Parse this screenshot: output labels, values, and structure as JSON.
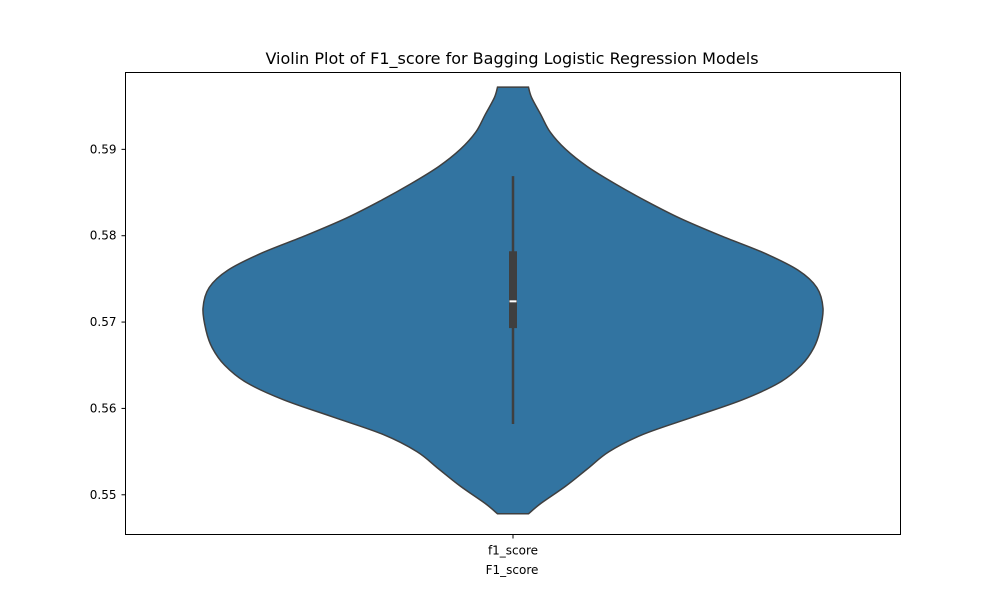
{
  "chart_data": {
    "type": "violin",
    "title": "Violin Plot of F1_score for Bagging Logistic Regression Models",
    "xlabel": "F1_score",
    "ylabel": "",
    "categories": [
      "f1_score"
    ],
    "ylim": [
      0.5454,
      0.5989
    ],
    "yticks": [
      0.55,
      0.56,
      0.57,
      0.58,
      0.59
    ],
    "ytick_labels": [
      "0.55",
      "0.56",
      "0.57",
      "0.58",
      "0.59"
    ],
    "grid": false,
    "legend": "none",
    "violin": {
      "color": "#3274a1",
      "edge_color": "#3f3f3f",
      "min": 0.5478,
      "max": 0.5972,
      "whisker_low": 0.5582,
      "whisker_high": 0.5869,
      "q1": 0.5693,
      "median": 0.5724,
      "q3": 0.5782,
      "density_profile": [
        {
          "y": 0.5478,
          "w": 0.05
        },
        {
          "y": 0.549,
          "w": 0.09
        },
        {
          "y": 0.551,
          "w": 0.17
        },
        {
          "y": 0.553,
          "w": 0.24
        },
        {
          "y": 0.555,
          "w": 0.31
        },
        {
          "y": 0.557,
          "w": 0.42
        },
        {
          "y": 0.559,
          "w": 0.58
        },
        {
          "y": 0.561,
          "w": 0.74
        },
        {
          "y": 0.563,
          "w": 0.86
        },
        {
          "y": 0.565,
          "w": 0.93
        },
        {
          "y": 0.567,
          "w": 0.97
        },
        {
          "y": 0.569,
          "w": 0.99
        },
        {
          "y": 0.5716,
          "w": 1.0
        },
        {
          "y": 0.574,
          "w": 0.98
        },
        {
          "y": 0.576,
          "w": 0.92
        },
        {
          "y": 0.578,
          "w": 0.81
        },
        {
          "y": 0.58,
          "w": 0.67
        },
        {
          "y": 0.582,
          "w": 0.54
        },
        {
          "y": 0.584,
          "w": 0.43
        },
        {
          "y": 0.586,
          "w": 0.33
        },
        {
          "y": 0.588,
          "w": 0.24
        },
        {
          "y": 0.59,
          "w": 0.17
        },
        {
          "y": 0.592,
          "w": 0.12
        },
        {
          "y": 0.594,
          "w": 0.09
        },
        {
          "y": 0.596,
          "w": 0.06
        },
        {
          "y": 0.5972,
          "w": 0.05
        }
      ]
    }
  }
}
